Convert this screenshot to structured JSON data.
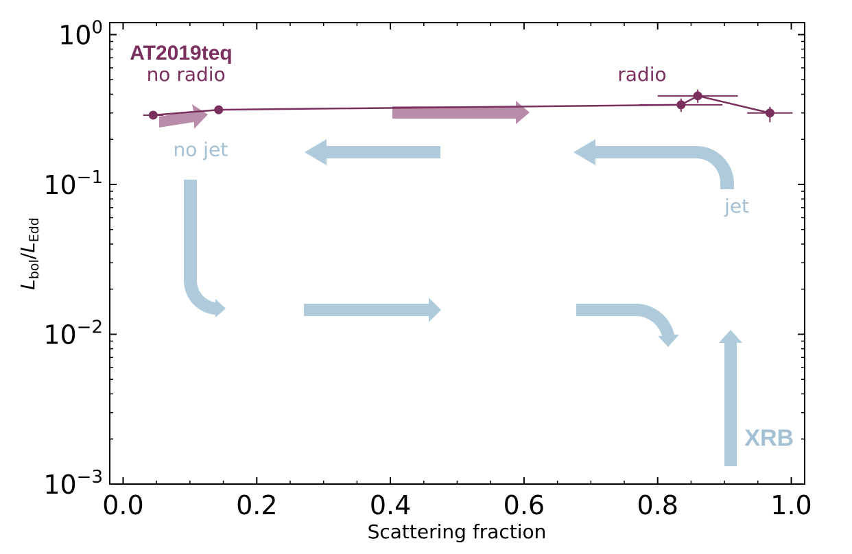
{
  "chart_data": {
    "type": "line",
    "xlabel": "Scattering fraction",
    "ylabel": {
      "main1": "L",
      "sub1": "bol",
      "sep": "/",
      "main2": "L",
      "sub2": "Edd"
    },
    "xlim": [
      -0.02,
      1.02
    ],
    "ylim_log10": [
      -3,
      0.08
    ],
    "yscale": "log",
    "x_ticks": [
      {
        "value": 0.0,
        "label": "0.0"
      },
      {
        "value": 0.2,
        "label": "0.2"
      },
      {
        "value": 0.4,
        "label": "0.4"
      },
      {
        "value": 0.6,
        "label": "0.6"
      },
      {
        "value": 0.8,
        "label": "0.8"
      },
      {
        "value": 1.0,
        "label": "1.0"
      }
    ],
    "y_ticks": [
      {
        "exp": 0,
        "base": "10",
        "sup": "0"
      },
      {
        "exp": -1,
        "base": "10",
        "sup": "−1"
      },
      {
        "exp": -2,
        "base": "10",
        "sup": "−2"
      },
      {
        "exp": -3,
        "base": "10",
        "sup": "−3"
      }
    ],
    "series": [
      {
        "color": "#7a2f5f",
        "points": [
          {
            "x": 0.045,
            "y": 0.29,
            "xerr": 0.015,
            "yerr_lo": 0.0,
            "yerr_hi": 0.0
          },
          {
            "x": 0.143,
            "y": 0.315,
            "xerr": 0.0,
            "yerr_lo": 0.0,
            "yerr_hi": 0.0
          },
          {
            "x": 0.835,
            "y": 0.34,
            "xerr": 0.062,
            "yerr_lo": 0.035,
            "yerr_hi": 0.035
          },
          {
            "x": 0.86,
            "y": 0.39,
            "xerr": 0.06,
            "yerr_lo": 0.04,
            "yerr_hi": 0.04
          },
          {
            "x": 0.968,
            "y": 0.3,
            "xerr": 0.034,
            "yerr_lo": 0.04,
            "yerr_hi": 0.03
          }
        ]
      }
    ],
    "annotations": [
      {
        "text": "AT2019teq",
        "x": 0.01,
        "y": 0.68,
        "style": "title",
        "color": "#7a2f5f"
      },
      {
        "text": "no radio",
        "x": 0.035,
        "y": 0.49,
        "style": "normal",
        "color": "#7a2f5f"
      },
      {
        "text": "radio",
        "x": 0.74,
        "y": 0.49,
        "style": "normal",
        "color": "#7a2f5f"
      },
      {
        "text": "no jet",
        "x": 0.075,
        "y": 0.155,
        "style": "normal",
        "color": "#a4c0d4"
      },
      {
        "text": "jet",
        "x": 0.9,
        "y": 0.065,
        "style": "normal",
        "color": "#a4c0d4"
      },
      {
        "text": "XRB",
        "x": 0.93,
        "y": 0.0018,
        "style": "xrb",
        "color": "#a4c0d4"
      }
    ],
    "arrow_colors": {
      "agn": "#b98ca9",
      "xrb": "#aecadb"
    },
    "grid": false,
    "legend": "none"
  }
}
